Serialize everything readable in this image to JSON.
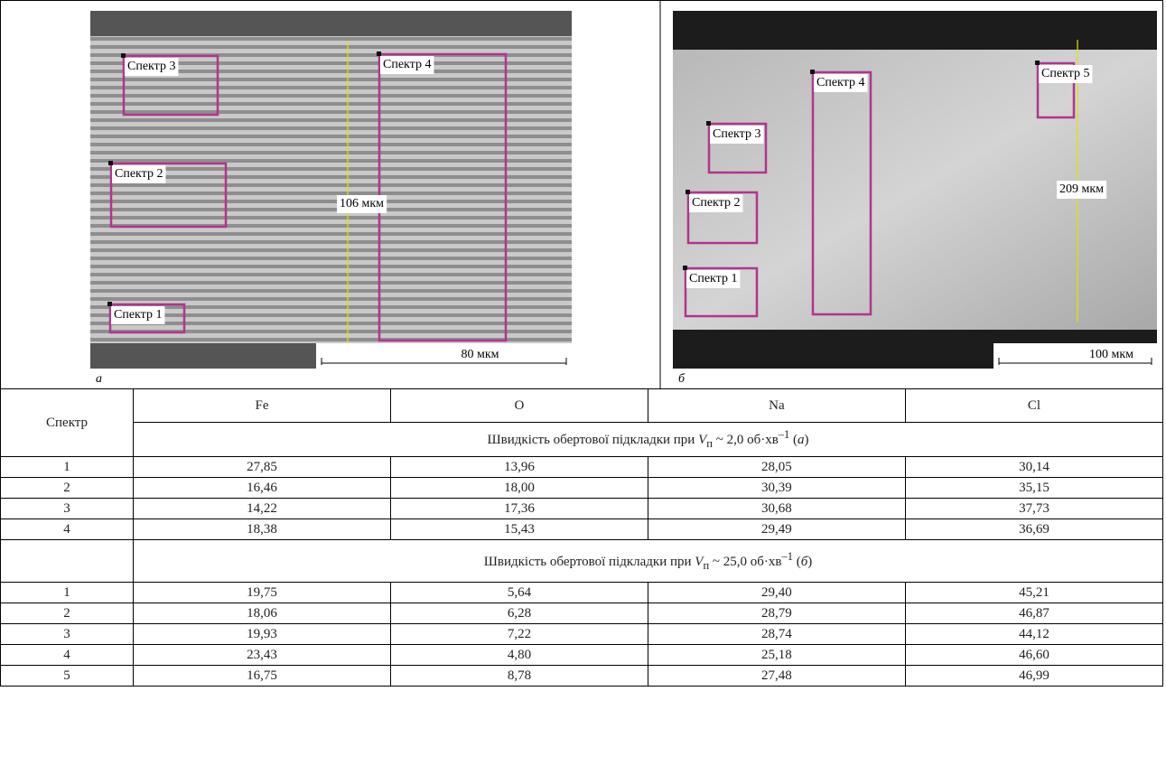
{
  "figure": {
    "panels": [
      {
        "label": "а",
        "regions": [
          "Спектр 1",
          "Спектр 2",
          "Спектр 3",
          "Спектр 4"
        ],
        "measure": "106 мкм",
        "scale_bar": "80 мкм"
      },
      {
        "label": "б",
        "regions": [
          "Спектр 1",
          "Спектр 2",
          "Спектр 3",
          "Спектр 4",
          "Спектр 5"
        ],
        "measure": "209 мкм",
        "scale_bar": "100 мкм"
      }
    ]
  },
  "table": {
    "header": [
      "Спектр",
      "Fe",
      "O",
      "Na",
      "Cl"
    ],
    "groups": [
      {
        "caption": {
          "text_before": "Швидкість обертової підкладки при ",
          "symbol": "V",
          "subscript": "п",
          "text_middle": " ~ 2,0 об·хв",
          "superscript": "–1",
          "text_open": " (",
          "label": "а",
          "text_close": ")"
        },
        "rows": [
          [
            "1",
            "27,85",
            "13,96",
            "28,05",
            "30,14"
          ],
          [
            "2",
            "16,46",
            "18,00",
            "30,39",
            "35,15"
          ],
          [
            "3",
            "14,22",
            "17,36",
            "30,68",
            "37,73"
          ],
          [
            "4",
            "18,38",
            "15,43",
            "29,49",
            "36,69"
          ]
        ]
      },
      {
        "caption": {
          "text_before": "Швидкість обертової підкладки при ",
          "symbol": "V",
          "subscript": "п",
          "text_middle": " ~ 25,0 об·хв",
          "superscript": "–1",
          "text_open": " (",
          "label": "б",
          "text_close": ")"
        },
        "rows": [
          [
            "1",
            "19,75",
            "5,64",
            "29,40",
            "45,21"
          ],
          [
            "2",
            "18,06",
            "6,28",
            "28,79",
            "46,87"
          ],
          [
            "3",
            "19,93",
            "7,22",
            "28,74",
            "44,12"
          ],
          [
            "4",
            "23,43",
            "4,80",
            "25,18",
            "46,60"
          ],
          [
            "5",
            "16,75",
            "8,78",
            "27,48",
            "46,99"
          ]
        ]
      }
    ]
  }
}
